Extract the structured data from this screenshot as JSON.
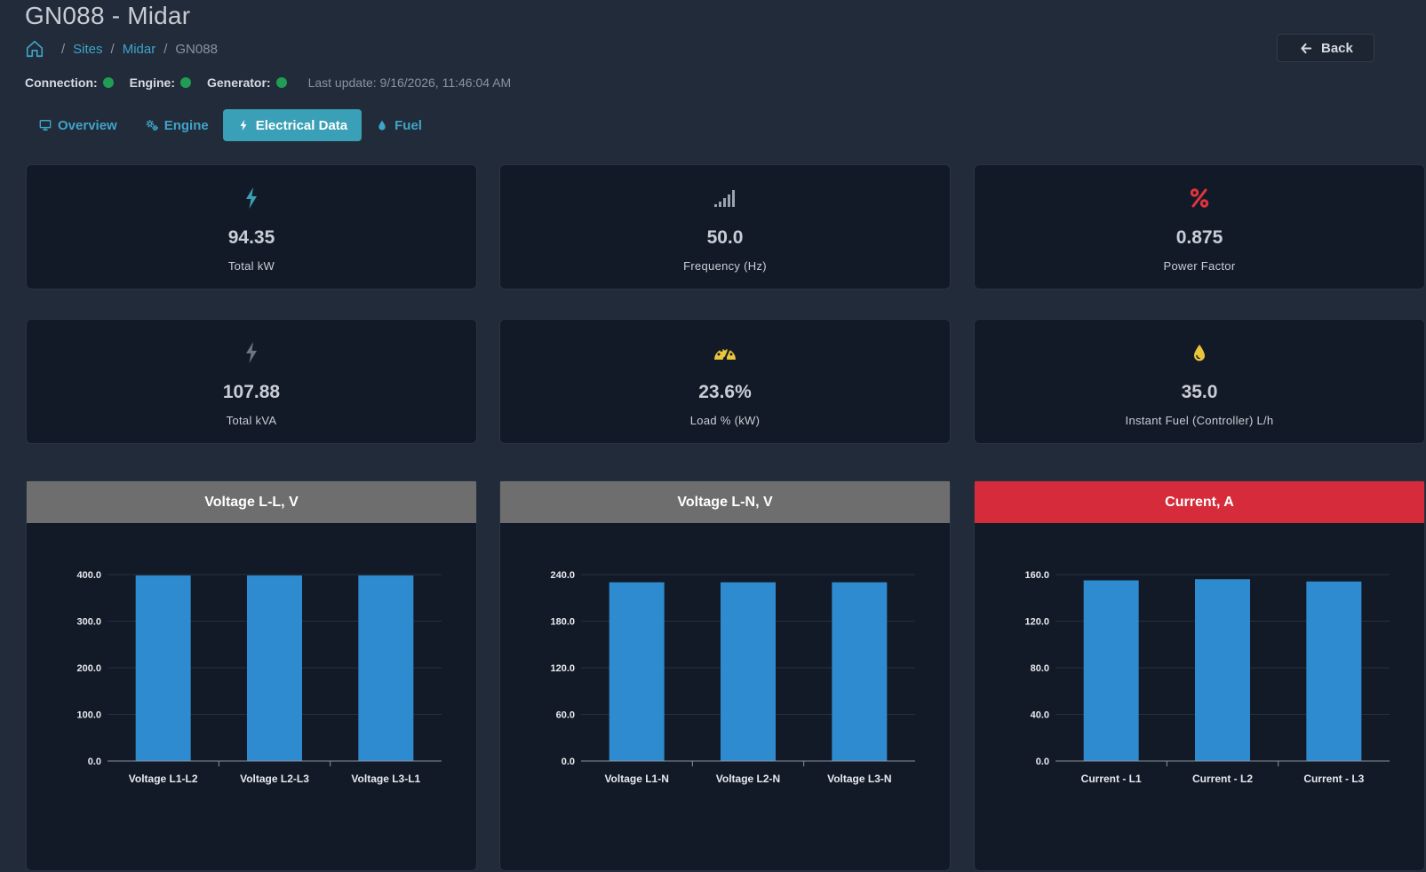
{
  "header": {
    "title": "GN088 - Midar",
    "back_label": "Back"
  },
  "breadcrumb": {
    "items": [
      "Sites",
      "Midar",
      "GN088"
    ]
  },
  "status": {
    "connection_label": "Connection:",
    "engine_label": "Engine:",
    "generator_label": "Generator:",
    "last_update": "Last update: 9/16/2026, 11:46:04 AM",
    "indicator_color": "#1f9d55"
  },
  "tabs": [
    {
      "label": "Overview",
      "icon": "monitor-icon",
      "active": false
    },
    {
      "label": "Engine",
      "icon": "cogs-icon",
      "active": false
    },
    {
      "label": "Electrical Data",
      "icon": "bolt-icon",
      "active": true
    },
    {
      "label": "Fuel",
      "icon": "droplet-icon",
      "active": false
    }
  ],
  "metrics": [
    {
      "value": "94.35",
      "label": "Total kW",
      "icon": "bolt-icon",
      "color": "#3aa0b7"
    },
    {
      "value": "50.0",
      "label": "Frequency (Hz)",
      "icon": "signal-icon",
      "color": "#9aa3ad"
    },
    {
      "value": "0.875",
      "label": "Power Factor",
      "icon": "percent-icon",
      "color": "#e0343f"
    },
    {
      "value": "107.88",
      "label": "Total kVA",
      "icon": "bolt-icon",
      "color": "#6b7480"
    },
    {
      "value": "23.6%",
      "label": "Load % (kW)",
      "icon": "gauge-icon",
      "color": "#e8c53a"
    },
    {
      "value": "35.0",
      "label": "Instant Fuel (Controller) L/h",
      "icon": "droplet-icon",
      "color": "#e8c53a"
    }
  ],
  "chart_data": [
    {
      "type": "bar",
      "title": "Voltage L-L, V",
      "header_color": "#6e6e6e",
      "categories": [
        "Voltage L1-L2",
        "Voltage L2-L3",
        "Voltage L3-L1"
      ],
      "values": [
        398,
        398,
        398
      ],
      "ylim": [
        0,
        400
      ],
      "yticks": [
        "0.0",
        "100.0",
        "200.0",
        "300.0",
        "400.0"
      ],
      "bar_color": "#2e8bcf",
      "grid": true
    },
    {
      "type": "bar",
      "title": "Voltage L-N, V",
      "header_color": "#6e6e6e",
      "categories": [
        "Voltage L1-N",
        "Voltage L2-N",
        "Voltage L3-N"
      ],
      "values": [
        230,
        230,
        230
      ],
      "ylim": [
        0,
        240
      ],
      "yticks": [
        "0.0",
        "60.0",
        "120.0",
        "180.0",
        "240.0"
      ],
      "bar_color": "#2e8bcf",
      "grid": true
    },
    {
      "type": "bar",
      "title": "Current, A",
      "header_color": "#d52b3a",
      "categories": [
        "Current - L1",
        "Current - L2",
        "Current - L3"
      ],
      "values": [
        155,
        156,
        154
      ],
      "ylim": [
        0,
        160
      ],
      "yticks": [
        "0.0",
        "40.0",
        "80.0",
        "120.0",
        "160.0"
      ],
      "bar_color": "#2e8bcf",
      "grid": true
    }
  ]
}
